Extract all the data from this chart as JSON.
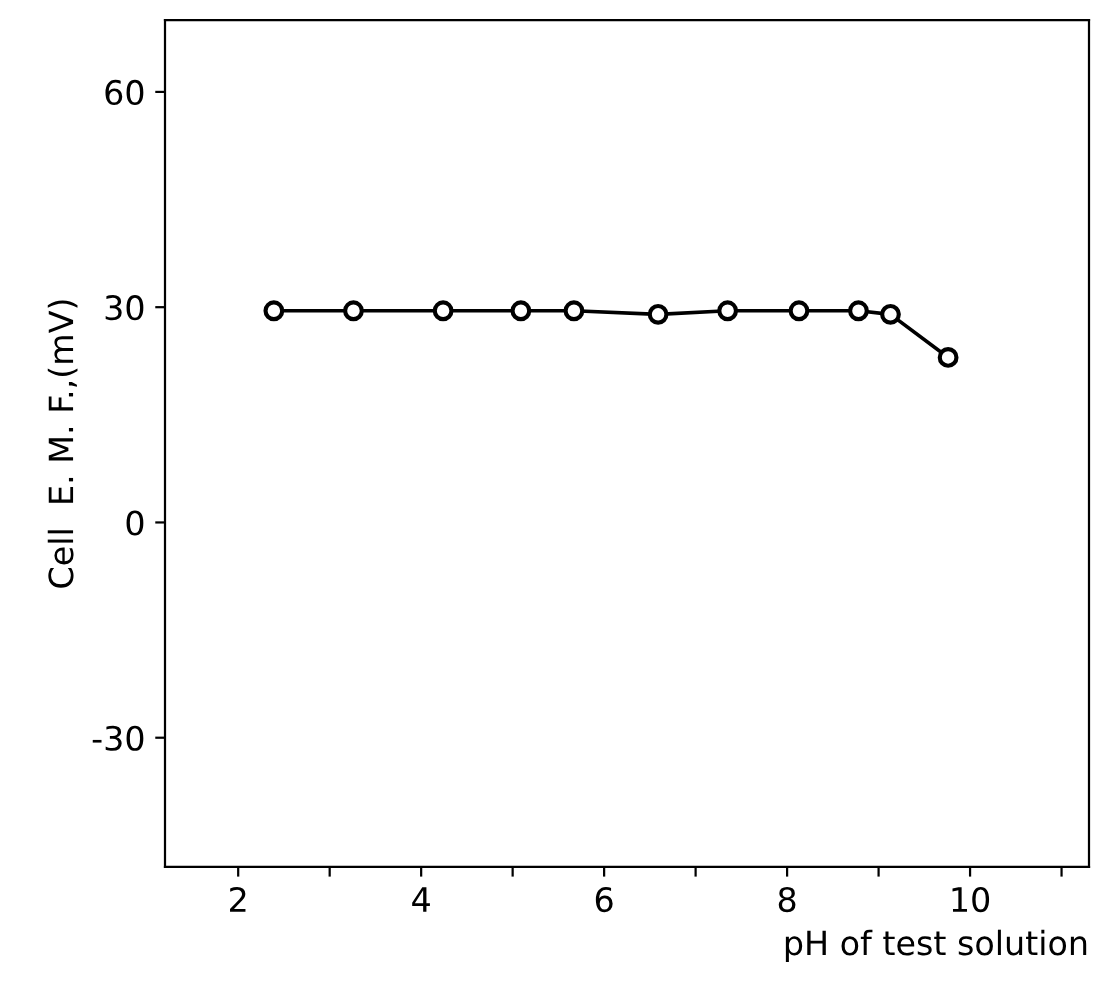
{
  "chart_data": {
    "type": "line",
    "xlabel": "pH of test solution",
    "ylabel": "Cell  E. M. F.,(mV)",
    "x": [
      2.39,
      3.26,
      4.24,
      5.09,
      5.67,
      6.59,
      7.35,
      8.13,
      8.78,
      9.13,
      9.76
    ],
    "series": [
      {
        "color": "#000000",
        "values": [
          29.5,
          29.5,
          29.5,
          29.5,
          29.5,
          29,
          29.5,
          29.5,
          29.5,
          29,
          23
        ]
      }
    ],
    "marker": "circle",
    "line_style": "solid",
    "xlim": [
      1.2,
      11.3
    ],
    "ylim": [
      -48,
      70
    ],
    "xticks": [
      2,
      {
        "value": 3,
        "label": null
      },
      4,
      {
        "value": 5,
        "label": null
      },
      6,
      {
        "value": 7,
        "label": null
      },
      8,
      {
        "value": 9,
        "label": null
      },
      10,
      {
        "value": 11,
        "label": null
      }
    ],
    "yticks": [
      -30,
      0,
      30,
      60
    ],
    "grid": false,
    "legend": false
  }
}
